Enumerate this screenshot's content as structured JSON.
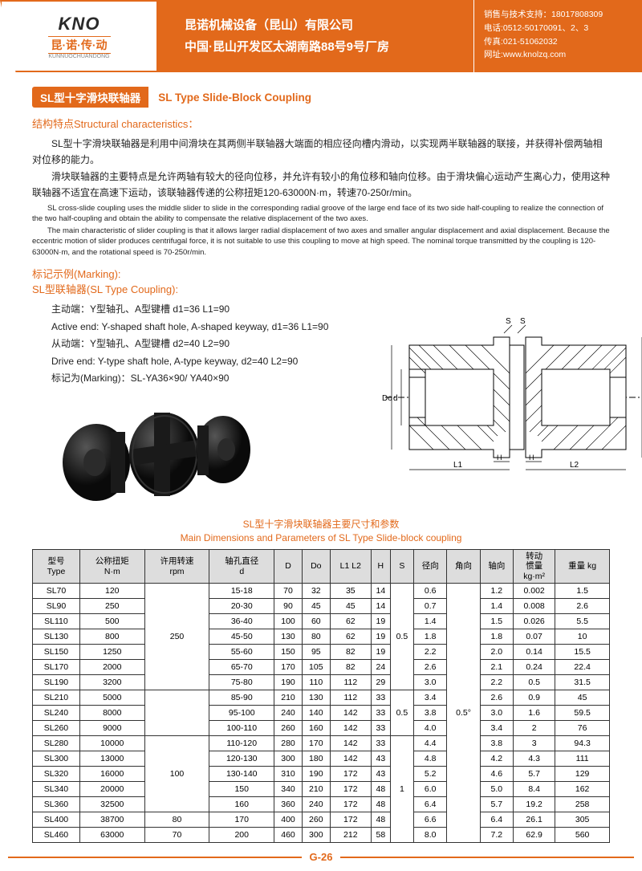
{
  "header": {
    "logo_main": "KNO",
    "logo_sub": "昆·诺·传·动",
    "logo_pin": "KUNNUOCHUANDONG",
    "company": "昆诺机械设备（昆山）有限公司",
    "address": "中国·昆山开发区太湖南路88号9号厂房",
    "c1": "销售与技术支持：18017808309",
    "c2": "电话:0512-50170091、2、3",
    "c3": "传真:021-51062032",
    "c4": "网址:www.knolzq.com"
  },
  "title": {
    "cn": "SL型十字滑块联轴器",
    "en": "SL Type Slide-Block Coupling"
  },
  "structural_title": "结构特点Structural characteristics：",
  "p1": "SL型十字滑块联轴器是利用中间滑块在其两侧半联轴器大端面的相应径向槽内滑动，以实现两半联轴器的联接，并获得补偿两轴相对位移的能力。",
  "p2": "滑块联轴器的主要特点是允许两轴有较大的径向位移，并允许有较小的角位移和轴向位移。由于滑块偏心运动产生离心力，使用这种联轴器不适宜在高速下运动，该联轴器传递的公称扭矩120-63000N·m，转速70-250r/min。",
  "p1e": "SL cross-slide coupling uses the middle slider to slide in the corresponding radial groove of the large end face of its two side half-coupling to realize the connection of the two half-coupling and obtain the ability to compensate the relative displacement of the two axes.",
  "p2e": "The main characteristic of slider coupling is that it allows larger radial displacement of two axes and smaller angular displacement and axial displacement. Because the eccentric motion of slider produces centrifugal force, it is not suitable to use this coupling to move at high speed. The nominal torque transmitted by the coupling is 120-63000N·m, and the rotational speed is 70-250r/min.",
  "mark_t1": "标记示例(Marking):",
  "mark_t2": "SL型联轴器(SL Type Coupling):",
  "m1": "主动端：Y型轴孔、A型键槽 d1=36 L1=90",
  "m2": "Active end: Y-shaped shaft hole, A-shaped keyway, d1=36 L1=90",
  "m3": "从动端：Y型轴孔、A型键槽 d2=40 L2=90",
  "m4": "Drive end: Y-type shaft hole, A-type keyway, d2=40 L2=90",
  "m5": "标记为(Marking)：SL-YA36×90/ YA40×90",
  "tbl_title_cn": "SL型十字滑块联轴器主要尺寸和参数",
  "tbl_title_en": "Main Dimensions and Parameters of SL Type Slide-block coupling",
  "cols": [
    "型号\nType",
    "公称扭矩\nN·m",
    "许用转速\nrpm",
    "轴孔直径\nd",
    "D",
    "Do",
    "L1  L2",
    "H",
    "S",
    "径向",
    "角向",
    "轴向",
    "转动\n惯量\nkg·m²",
    "重量 kg"
  ],
  "merges": {
    "rpm250": "250",
    "rpm100": "100",
    "rpm80": "80",
    "rpm70": "70",
    "s05a": "0.5",
    "s05b": "0.5",
    "s1": "1",
    "ang": "0.5°"
  },
  "rows": [
    [
      "SL70",
      "120",
      "",
      "15-18",
      "70",
      "32",
      "35",
      "14",
      "",
      "0.6",
      "",
      "1.2",
      "0.002",
      "1.5"
    ],
    [
      "SL90",
      "250",
      "",
      "20-30",
      "90",
      "45",
      "45",
      "14",
      "",
      "0.7",
      "",
      "1.4",
      "0.008",
      "2.6"
    ],
    [
      "SL110",
      "500",
      "",
      "36-40",
      "100",
      "60",
      "62",
      "19",
      "",
      "1.4",
      "",
      "1.5",
      "0.026",
      "5.5"
    ],
    [
      "SL130",
      "800",
      "",
      "45-50",
      "130",
      "80",
      "62",
      "19",
      "",
      "1.8",
      "",
      "1.8",
      "0.07",
      "10"
    ],
    [
      "SL150",
      "1250",
      "",
      "55-60",
      "150",
      "95",
      "82",
      "19",
      "",
      "2.2",
      "",
      "2.0",
      "0.14",
      "15.5"
    ],
    [
      "SL170",
      "2000",
      "",
      "65-70",
      "170",
      "105",
      "82",
      "24",
      "",
      "2.6",
      "",
      "2.1",
      "0.24",
      "22.4"
    ],
    [
      "SL190",
      "3200",
      "",
      "75-80",
      "190",
      "110",
      "112",
      "29",
      "",
      "3.0",
      "",
      "2.2",
      "0.5",
      "31.5"
    ],
    [
      "SL210",
      "5000",
      "",
      "85-90",
      "210",
      "130",
      "112",
      "33",
      "",
      "3.4",
      "",
      "2.6",
      "0.9",
      "45"
    ],
    [
      "SL240",
      "8000",
      "",
      "95-100",
      "240",
      "140",
      "142",
      "33",
      "",
      "3.8",
      "",
      "3.0",
      "1.6",
      "59.5"
    ],
    [
      "SL260",
      "9000",
      "",
      "100-110",
      "260",
      "160",
      "142",
      "33",
      "",
      "4.0",
      "",
      "3.4",
      "2",
      "76"
    ],
    [
      "SL280",
      "10000",
      "",
      "110-120",
      "280",
      "170",
      "142",
      "33",
      "",
      "4.4",
      "",
      "3.8",
      "3",
      "94.3"
    ],
    [
      "SL300",
      "13000",
      "",
      "120-130",
      "300",
      "180",
      "142",
      "43",
      "",
      "4.8",
      "",
      "4.2",
      "4.3",
      "111"
    ],
    [
      "SL320",
      "16000",
      "",
      "130-140",
      "310",
      "190",
      "172",
      "43",
      "",
      "5.2",
      "",
      "4.6",
      "5.7",
      "129"
    ],
    [
      "SL340",
      "20000",
      "",
      "150",
      "340",
      "210",
      "172",
      "48",
      "",
      "6.0",
      "",
      "5.0",
      "8.4",
      "162"
    ],
    [
      "SL360",
      "32500",
      "",
      "160",
      "360",
      "240",
      "172",
      "48",
      "",
      "6.4",
      "",
      "5.7",
      "19.2",
      "258"
    ],
    [
      "SL400",
      "38700",
      "",
      "170",
      "400",
      "260",
      "172",
      "48",
      "",
      "6.6",
      "",
      "6.4",
      "26.1",
      "305"
    ],
    [
      "SL460",
      "63000",
      "",
      "200",
      "460",
      "300",
      "212",
      "58",
      "",
      "8.0",
      "",
      "7.2",
      "62.9",
      "560"
    ]
  ],
  "page_num": "G-26",
  "colors": {
    "accent": "#e2691b",
    "text": "#222",
    "border": "#333",
    "th_bg": "#ddd"
  },
  "dwg": {
    "labels": [
      "S",
      "S",
      "d",
      "Do",
      "L1",
      "H",
      "H",
      "L2",
      "D"
    ]
  }
}
